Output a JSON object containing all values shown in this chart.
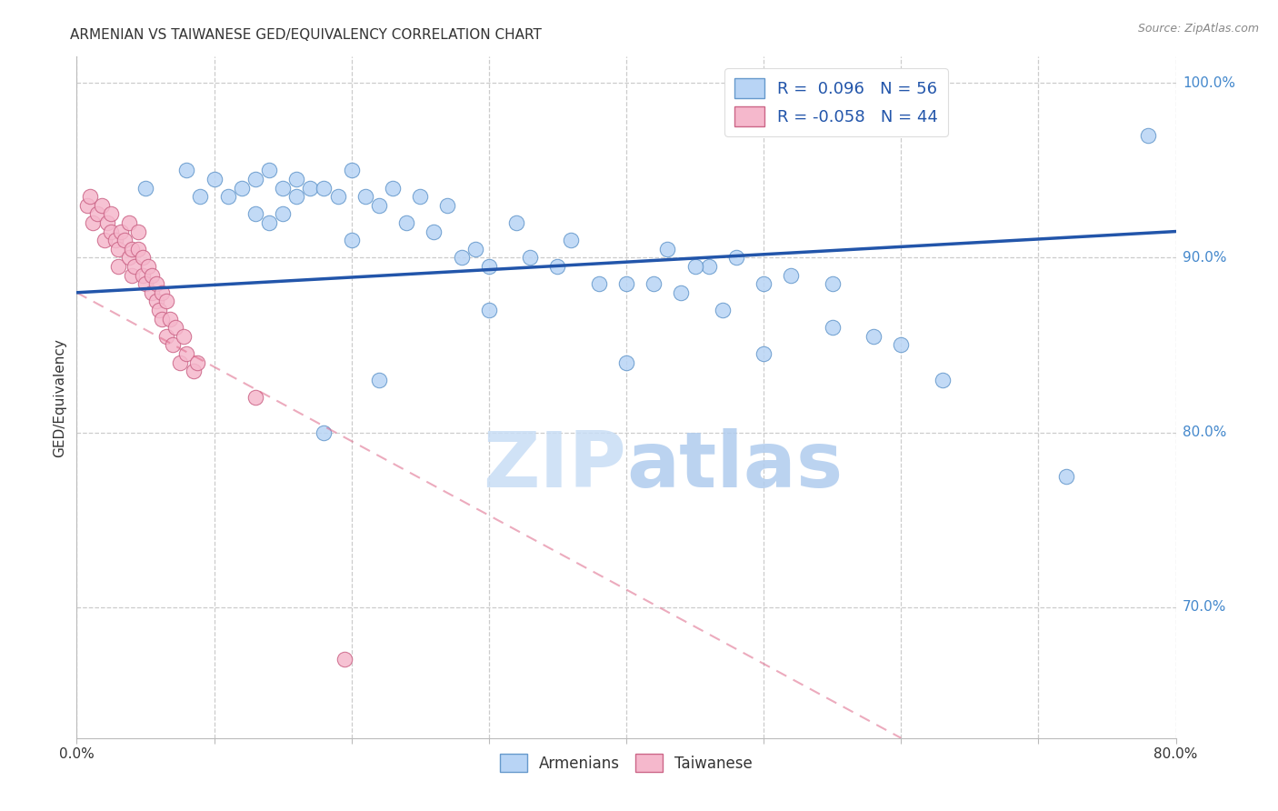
{
  "title": "ARMENIAN VS TAIWANESE GED/EQUIVALENCY CORRELATION CHART",
  "source": "Source: ZipAtlas.com",
  "ylabel": "GED/Equivalency",
  "xlim": [
    0.0,
    0.8
  ],
  "ylim": [
    0.625,
    1.015
  ],
  "yticks": [
    0.7,
    0.8,
    0.9,
    1.0
  ],
  "ytick_labels": [
    "70.0%",
    "80.0%",
    "90.0%",
    "100.0%"
  ],
  "xticks": [
    0.0,
    0.1,
    0.2,
    0.3,
    0.4,
    0.5,
    0.6,
    0.7,
    0.8
  ],
  "xtick_labels": [
    "0.0%",
    "",
    "",
    "",
    "",
    "",
    "",
    "",
    "80.0%"
  ],
  "legend_r_armenian": "R =  0.096",
  "legend_n_armenian": "N = 56",
  "legend_r_taiwanese": "R = -0.058",
  "legend_n_taiwanese": "N = 44",
  "armenian_color": "#b8d4f5",
  "armenian_edge_color": "#6699cc",
  "taiwanese_color": "#f5b8cc",
  "taiwanese_edge_color": "#cc6688",
  "trend_armenian_color": "#2255aa",
  "trend_taiwanese_color": "#dd6688",
  "background_color": "#ffffff",
  "grid_color": "#cccccc",
  "title_color": "#333333",
  "right_axis_color": "#4488cc",
  "watermark_color": "#ddeeff",
  "armenians_x": [
    0.05,
    0.08,
    0.1,
    0.12,
    0.09,
    0.14,
    0.13,
    0.16,
    0.11,
    0.15,
    0.17,
    0.13,
    0.18,
    0.16,
    0.19,
    0.14,
    0.2,
    0.21,
    0.15,
    0.23,
    0.22,
    0.25,
    0.2,
    0.27,
    0.24,
    0.3,
    0.26,
    0.28,
    0.32,
    0.35,
    0.29,
    0.38,
    0.33,
    0.36,
    0.4,
    0.43,
    0.42,
    0.46,
    0.45,
    0.48,
    0.5,
    0.44,
    0.52,
    0.55,
    0.47,
    0.58,
    0.6,
    0.63,
    0.5,
    0.3,
    0.22,
    0.18,
    0.4,
    0.55,
    0.72,
    0.78
  ],
  "armenians_y": [
    0.94,
    0.95,
    0.945,
    0.94,
    0.935,
    0.95,
    0.945,
    0.945,
    0.935,
    0.94,
    0.94,
    0.925,
    0.94,
    0.935,
    0.935,
    0.92,
    0.95,
    0.935,
    0.925,
    0.94,
    0.93,
    0.935,
    0.91,
    0.93,
    0.92,
    0.895,
    0.915,
    0.9,
    0.92,
    0.895,
    0.905,
    0.885,
    0.9,
    0.91,
    0.885,
    0.905,
    0.885,
    0.895,
    0.895,
    0.9,
    0.885,
    0.88,
    0.89,
    0.885,
    0.87,
    0.855,
    0.85,
    0.83,
    0.845,
    0.87,
    0.83,
    0.8,
    0.84,
    0.86,
    0.775,
    0.97
  ],
  "taiwanese_x": [
    0.008,
    0.01,
    0.012,
    0.015,
    0.018,
    0.02,
    0.022,
    0.025,
    0.025,
    0.028,
    0.03,
    0.032,
    0.03,
    0.035,
    0.038,
    0.038,
    0.04,
    0.04,
    0.042,
    0.045,
    0.045,
    0.048,
    0.048,
    0.05,
    0.052,
    0.055,
    0.055,
    0.058,
    0.058,
    0.06,
    0.062,
    0.062,
    0.065,
    0.065,
    0.068,
    0.07,
    0.072,
    0.075,
    0.078,
    0.08,
    0.085,
    0.088,
    0.13,
    0.195
  ],
  "taiwanese_y": [
    0.93,
    0.935,
    0.92,
    0.925,
    0.93,
    0.91,
    0.92,
    0.915,
    0.925,
    0.91,
    0.905,
    0.915,
    0.895,
    0.91,
    0.9,
    0.92,
    0.89,
    0.905,
    0.895,
    0.905,
    0.915,
    0.89,
    0.9,
    0.885,
    0.895,
    0.88,
    0.89,
    0.875,
    0.885,
    0.87,
    0.88,
    0.865,
    0.875,
    0.855,
    0.865,
    0.85,
    0.86,
    0.84,
    0.855,
    0.845,
    0.835,
    0.84,
    0.82,
    0.67
  ],
  "trend_arm_x0": 0.0,
  "trend_arm_x1": 0.8,
  "trend_arm_y0": 0.88,
  "trend_arm_y1": 0.915,
  "trend_tai_x0": 0.0,
  "trend_tai_x1": 0.6,
  "trend_tai_y0": 0.88,
  "trend_tai_y1": 0.625
}
